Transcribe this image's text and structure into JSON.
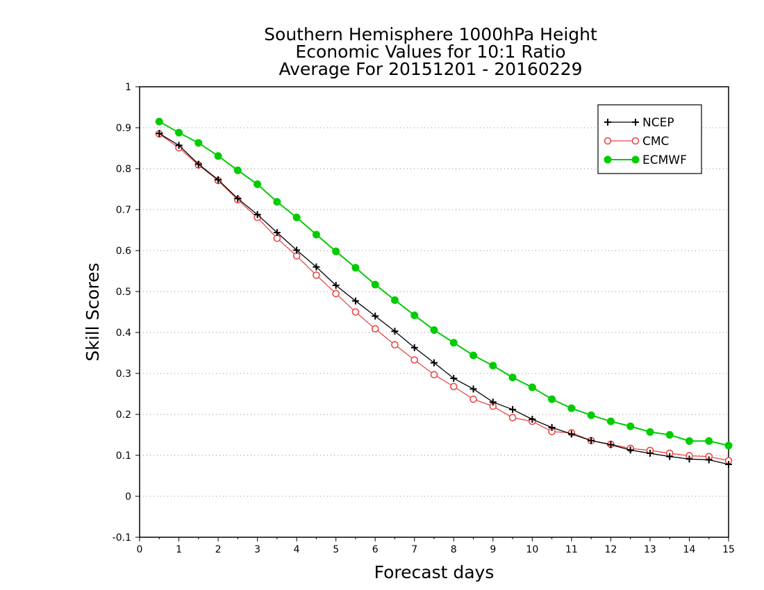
{
  "chart_data": {
    "type": "line",
    "title": [
      "Southern Hemisphere 1000hPa Height",
      "Economic Values for 10:1 Ratio",
      "Average For 20151201 - 20160229"
    ],
    "xlabel": "Forecast days",
    "ylabel": "Skill Scores",
    "xlim": [
      0,
      15
    ],
    "ylim": [
      -0.1,
      1
    ],
    "xticks": [
      0,
      1,
      2,
      3,
      4,
      5,
      6,
      7,
      8,
      9,
      10,
      11,
      12,
      13,
      14,
      15
    ],
    "yticks": [
      -0.1,
      0,
      0.1,
      0.2,
      0.3,
      0.4,
      0.5,
      0.6,
      0.7,
      0.8,
      0.9,
      1
    ],
    "ytick_labels": [
      "-0.1",
      "0",
      "0.1",
      "0.2",
      "0.3",
      "0.4",
      "0.5",
      "0.6",
      "0.7",
      "0.8",
      "0.9",
      "1"
    ],
    "grid": "horizontal dotted",
    "legend_position": "top-right",
    "x": [
      0.5,
      1,
      1.5,
      2,
      2.5,
      3,
      3.5,
      4,
      4.5,
      5,
      5.5,
      6,
      6.5,
      7,
      7.5,
      8,
      8.5,
      9,
      9.5,
      10,
      10.5,
      11,
      11.5,
      12,
      12.5,
      13,
      13.5,
      14,
      14.5,
      15
    ],
    "series": [
      {
        "name": "NCEP",
        "color": "#000000",
        "marker": "plus",
        "values": [
          0.886,
          0.857,
          0.811,
          0.773,
          0.727,
          0.688,
          0.644,
          0.601,
          0.56,
          0.515,
          0.477,
          0.44,
          0.403,
          0.363,
          0.326,
          0.288,
          0.262,
          0.23,
          0.212,
          0.188,
          0.168,
          0.152,
          0.136,
          0.126,
          0.113,
          0.105,
          0.097,
          0.091,
          0.089,
          0.078
        ]
      },
      {
        "name": "CMC",
        "color": "#e84848",
        "marker": "open-circle",
        "values": [
          0.885,
          0.851,
          0.809,
          0.771,
          0.724,
          0.681,
          0.63,
          0.587,
          0.54,
          0.495,
          0.45,
          0.409,
          0.37,
          0.333,
          0.297,
          0.268,
          0.237,
          0.22,
          0.192,
          0.183,
          0.158,
          0.155,
          0.136,
          0.127,
          0.117,
          0.112,
          0.105,
          0.099,
          0.097,
          0.087
        ]
      },
      {
        "name": "ECMWF",
        "color": "#00cc00",
        "marker": "filled-circle",
        "values": [
          0.915,
          0.888,
          0.863,
          0.831,
          0.796,
          0.762,
          0.719,
          0.681,
          0.639,
          0.598,
          0.558,
          0.517,
          0.479,
          0.442,
          0.406,
          0.375,
          0.344,
          0.319,
          0.29,
          0.266,
          0.237,
          0.215,
          0.198,
          0.183,
          0.171,
          0.157,
          0.15,
          0.135,
          0.135,
          0.124
        ]
      }
    ]
  }
}
